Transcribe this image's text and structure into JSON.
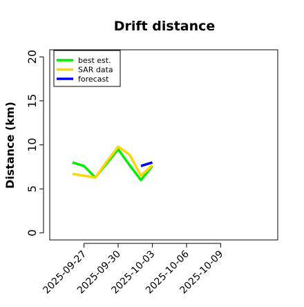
{
  "chart_data": {
    "type": "line",
    "title": "Drift distance",
    "y_label": "Distance (km)",
    "x": [
      "2025-09-26",
      "2025-09-27",
      "2025-09-28",
      "2025-09-29",
      "2025-09-30",
      "2025-10-01",
      "2025-10-02",
      "2025-10-03"
    ],
    "series": [
      {
        "name": "best est.",
        "color": "#00ee00",
        "values": [
          8.0,
          7.6,
          6.3,
          7.9,
          9.5,
          7.7,
          6.0,
          7.6
        ]
      },
      {
        "name": "SAR data",
        "color": "#ffd700",
        "values": [
          6.7,
          6.5,
          6.3,
          8.1,
          9.8,
          8.9,
          6.5,
          7.7
        ]
      },
      {
        "name": "forecast",
        "color": "#0000ff",
        "values": [
          null,
          null,
          null,
          null,
          null,
          null,
          7.6,
          8.0
        ]
      }
    ],
    "xlim": [
      "2025-09-24",
      "2025-10-14"
    ],
    "xticks": [
      "2025-09-27",
      "2025-09-30",
      "2025-10-03",
      "2025-10-06",
      "2025-10-09"
    ],
    "ylim": [
      -0.8,
      20.8
    ],
    "yticks": [
      0,
      5,
      10,
      15,
      20
    ],
    "legend": "top-left"
  }
}
